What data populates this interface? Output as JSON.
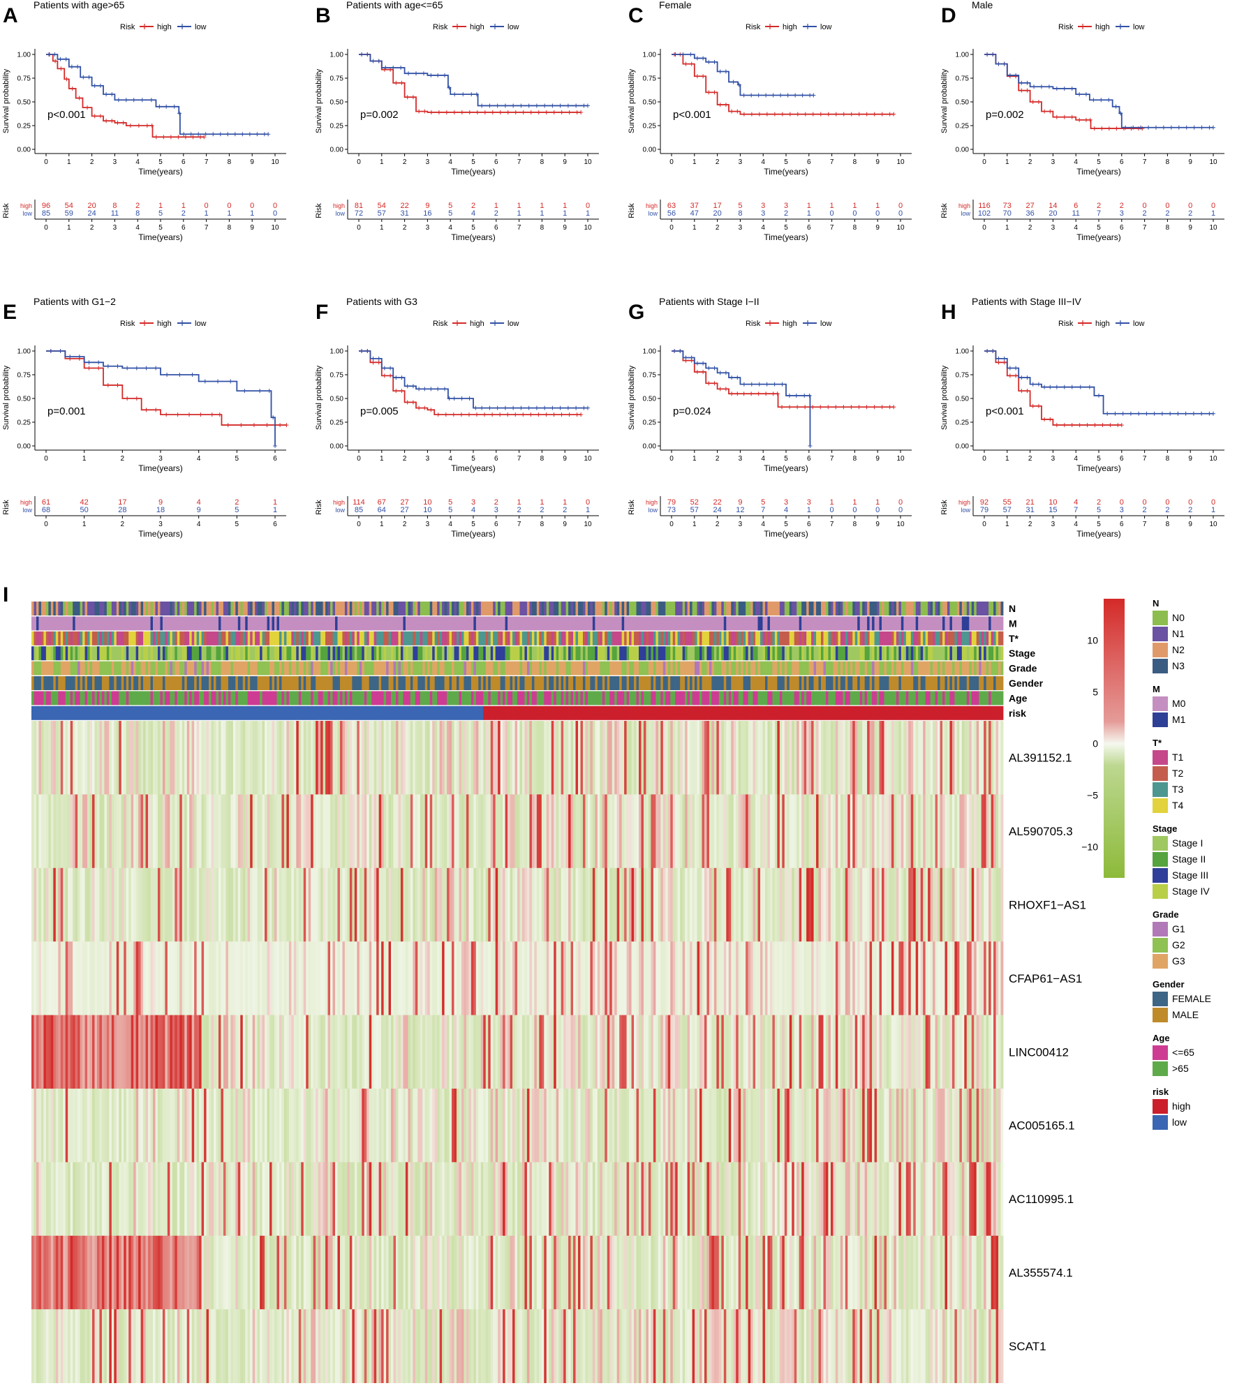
{
  "colors": {
    "high": "#d42a28",
    "low": "#3150a6"
  },
  "km_common": {
    "legend_title": "Risk",
    "legend_high": "high",
    "legend_low": "low",
    "ylabel": "Survival probability",
    "xlabel": "Time(years)",
    "risk_table_ylabel": "Risk",
    "risk_row_high": "high",
    "risk_row_low": "low",
    "yticks": [
      "0.00",
      "0.25",
      "0.50",
      "0.75",
      "1.00"
    ]
  },
  "chart_data": [
    {
      "type": "line",
      "letter": "A",
      "title": "Patients with age>65",
      "pvalue": "p<0.001",
      "xmax": 10,
      "xticks": [
        0,
        1,
        2,
        3,
        4,
        5,
        6,
        7,
        8,
        9,
        10
      ],
      "ylim": [
        0,
        1
      ],
      "series": [
        {
          "name": "high",
          "x": [
            0,
            0.3,
            0.5,
            0.8,
            1.0,
            1.3,
            1.6,
            2.0,
            2.5,
            3.0,
            3.5,
            4.6,
            4.65,
            6.9
          ],
          "y": [
            1,
            0.93,
            0.85,
            0.74,
            0.64,
            0.54,
            0.44,
            0.35,
            0.3,
            0.28,
            0.25,
            0.25,
            0.13,
            0.13
          ]
        },
        {
          "name": "low",
          "x": [
            0,
            0.5,
            1.0,
            1.5,
            2.0,
            2.5,
            3.0,
            4.0,
            4.8,
            5.4,
            5.8,
            5.85,
            9.7
          ],
          "y": [
            1,
            0.95,
            0.87,
            0.76,
            0.67,
            0.58,
            0.52,
            0.52,
            0.45,
            0.45,
            0.38,
            0.16,
            0.16
          ]
        }
      ],
      "risk_table": {
        "x": [
          0,
          1,
          2,
          3,
          4,
          5,
          6,
          7,
          8,
          9,
          10
        ],
        "high": [
          "96",
          "54",
          "20",
          "8",
          "2",
          "1",
          "1",
          "0",
          "0",
          "0",
          "0"
        ],
        "low": [
          "85",
          "59",
          "24",
          "11",
          "8",
          "5",
          "2",
          "1",
          "1",
          "1",
          "0"
        ]
      }
    },
    {
      "type": "line",
      "letter": "B",
      "title": "Patients with age<=65",
      "pvalue": "p=0.002",
      "xmax": 10,
      "xticks": [
        0,
        1,
        2,
        3,
        4,
        5,
        6,
        7,
        8,
        9,
        10
      ],
      "ylim": [
        0,
        1
      ],
      "series": [
        {
          "name": "high",
          "x": [
            0,
            0.5,
            1.0,
            1.5,
            2.0,
            2.5,
            3.0,
            9.7
          ],
          "y": [
            1,
            0.93,
            0.84,
            0.7,
            0.55,
            0.4,
            0.39,
            0.39
          ]
        },
        {
          "name": "low",
          "x": [
            0,
            0.5,
            1.0,
            2.0,
            3.0,
            3.9,
            4.0,
            5.1,
            5.2,
            10
          ],
          "y": [
            1,
            0.93,
            0.86,
            0.8,
            0.78,
            0.65,
            0.58,
            0.58,
            0.46,
            0.46
          ]
        }
      ],
      "risk_table": {
        "x": [
          0,
          1,
          2,
          3,
          4,
          5,
          6,
          7,
          8,
          9,
          10
        ],
        "high": [
          "81",
          "54",
          "22",
          "9",
          "5",
          "2",
          "1",
          "1",
          "1",
          "1",
          "0"
        ],
        "low": [
          "72",
          "57",
          "31",
          "16",
          "5",
          "4",
          "2",
          "1",
          "1",
          "1",
          "1"
        ]
      }
    },
    {
      "type": "line",
      "letter": "C",
      "title": "Female",
      "pvalue": "p<0.001",
      "xmax": 10,
      "xticks": [
        0,
        1,
        2,
        3,
        4,
        5,
        6,
        7,
        8,
        9,
        10
      ],
      "ylim": [
        0,
        1
      ],
      "series": [
        {
          "name": "high",
          "x": [
            0,
            0.5,
            1.0,
            1.5,
            2.0,
            2.5,
            3.0,
            9.7
          ],
          "y": [
            1,
            0.9,
            0.77,
            0.6,
            0.47,
            0.4,
            0.37,
            0.37
          ]
        },
        {
          "name": "low",
          "x": [
            0,
            1.0,
            1.5,
            2.0,
            2.5,
            2.9,
            3.0,
            6.2
          ],
          "y": [
            1,
            0.96,
            0.92,
            0.82,
            0.71,
            0.68,
            0.57,
            0.57
          ]
        }
      ],
      "risk_table": {
        "x": [
          0,
          1,
          2,
          3,
          4,
          5,
          6,
          7,
          8,
          9,
          10
        ],
        "high": [
          "63",
          "37",
          "17",
          "5",
          "3",
          "3",
          "1",
          "1",
          "1",
          "1",
          "0"
        ],
        "low": [
          "56",
          "47",
          "20",
          "8",
          "3",
          "2",
          "1",
          "0",
          "0",
          "0",
          "0"
        ]
      }
    },
    {
      "type": "line",
      "letter": "D",
      "title": "Male",
      "pvalue": "p=0.002",
      "xmax": 10,
      "xticks": [
        0,
        1,
        2,
        3,
        4,
        5,
        6,
        7,
        8,
        9,
        10
      ],
      "ylim": [
        0,
        1
      ],
      "series": [
        {
          "name": "high",
          "x": [
            0,
            0.5,
            1.0,
            1.5,
            2.0,
            2.5,
            3.0,
            4.0,
            4.6,
            4.65,
            6.9
          ],
          "y": [
            1,
            0.9,
            0.77,
            0.62,
            0.5,
            0.4,
            0.34,
            0.31,
            0.31,
            0.22,
            0.22
          ]
        },
        {
          "name": "low",
          "x": [
            0,
            0.5,
            1.0,
            1.5,
            2.0,
            3.0,
            4.0,
            4.6,
            5.6,
            5.9,
            6.0,
            10
          ],
          "y": [
            1,
            0.9,
            0.78,
            0.7,
            0.66,
            0.64,
            0.58,
            0.52,
            0.45,
            0.38,
            0.23,
            0.23
          ]
        }
      ],
      "risk_table": {
        "x": [
          0,
          1,
          2,
          3,
          4,
          5,
          6,
          7,
          8,
          9,
          10
        ],
        "high": [
          "116",
          "73",
          "27",
          "14",
          "6",
          "2",
          "2",
          "0",
          "0",
          "0",
          "0"
        ],
        "low": [
          "102",
          "70",
          "36",
          "20",
          "11",
          "7",
          "3",
          "2",
          "2",
          "2",
          "1"
        ]
      }
    },
    {
      "type": "line",
      "letter": "E",
      "title": "Patients with G1−2",
      "pvalue": "p=0.001",
      "xmax": 6,
      "xticks": [
        0,
        1,
        2,
        3,
        4,
        5,
        6
      ],
      "ylim": [
        0,
        1
      ],
      "series": [
        {
          "name": "high",
          "x": [
            0,
            0.5,
            1.0,
            1.5,
            2.0,
            2.5,
            3.0,
            4.5,
            4.6,
            6.3
          ],
          "y": [
            1,
            0.92,
            0.82,
            0.64,
            0.5,
            0.38,
            0.33,
            0.33,
            0.22,
            0.22
          ]
        },
        {
          "name": "low",
          "x": [
            0,
            0.5,
            1.0,
            1.5,
            2.0,
            2.5,
            3.0,
            4.0,
            5.0,
            5.8,
            5.9,
            6.0
          ],
          "y": [
            1,
            0.94,
            0.88,
            0.84,
            0.82,
            0.82,
            0.75,
            0.68,
            0.58,
            0.58,
            0.3,
            0.0
          ]
        }
      ],
      "risk_table": {
        "x": [
          0,
          1,
          2,
          3,
          4,
          5,
          6
        ],
        "high": [
          "61",
          "42",
          "17",
          "9",
          "4",
          "2",
          "1"
        ],
        "low": [
          "68",
          "50",
          "28",
          "18",
          "9",
          "5",
          "1"
        ]
      }
    },
    {
      "type": "line",
      "letter": "F",
      "title": "Patients with G3",
      "pvalue": "p=0.005",
      "xmax": 10,
      "xticks": [
        0,
        1,
        2,
        3,
        4,
        5,
        6,
        7,
        8,
        9,
        10
      ],
      "ylim": [
        0,
        1
      ],
      "series": [
        {
          "name": "high",
          "x": [
            0,
            0.5,
            1.0,
            1.5,
            2.0,
            2.5,
            3.0,
            3.3,
            9.7
          ],
          "y": [
            1,
            0.88,
            0.74,
            0.58,
            0.46,
            0.4,
            0.38,
            0.33,
            0.33
          ]
        },
        {
          "name": "low",
          "x": [
            0,
            0.5,
            1.0,
            1.5,
            2.0,
            2.5,
            3.0,
            3.9,
            4.0,
            5.0,
            5.2,
            10
          ],
          "y": [
            1,
            0.92,
            0.82,
            0.72,
            0.63,
            0.6,
            0.6,
            0.5,
            0.5,
            0.4,
            0.4,
            0.4
          ]
        }
      ],
      "risk_table": {
        "x": [
          0,
          1,
          2,
          3,
          4,
          5,
          6,
          7,
          8,
          9,
          10
        ],
        "high": [
          "114",
          "67",
          "27",
          "10",
          "5",
          "3",
          "2",
          "1",
          "1",
          "1",
          "0"
        ],
        "low": [
          "85",
          "64",
          "27",
          "10",
          "5",
          "4",
          "3",
          "2",
          "2",
          "2",
          "1"
        ]
      }
    },
    {
      "type": "line",
      "letter": "G",
      "title": "Patients with Stage I−II",
      "pvalue": "p=0.024",
      "xmax": 10,
      "xticks": [
        0,
        1,
        2,
        3,
        4,
        5,
        6,
        7,
        8,
        9,
        10
      ],
      "ylim": [
        0,
        1
      ],
      "series": [
        {
          "name": "high",
          "x": [
            0,
            0.5,
            1.0,
            1.5,
            2.0,
            2.5,
            3.0,
            4.6,
            4.65,
            9.7
          ],
          "y": [
            1,
            0.9,
            0.78,
            0.66,
            0.6,
            0.55,
            0.55,
            0.55,
            0.41,
            0.41
          ]
        },
        {
          "name": "low",
          "x": [
            0,
            0.5,
            1.0,
            1.5,
            2.0,
            2.5,
            3.0,
            4.0,
            5.0,
            5.6,
            6.0,
            6.05
          ],
          "y": [
            1,
            0.93,
            0.87,
            0.82,
            0.77,
            0.72,
            0.65,
            0.65,
            0.53,
            0.53,
            0.53,
            0.0
          ]
        }
      ],
      "risk_table": {
        "x": [
          0,
          1,
          2,
          3,
          4,
          5,
          6,
          7,
          8,
          9,
          10
        ],
        "high": [
          "79",
          "52",
          "22",
          "9",
          "5",
          "3",
          "3",
          "1",
          "1",
          "1",
          "0"
        ],
        "low": [
          "73",
          "57",
          "24",
          "12",
          "7",
          "4",
          "1",
          "0",
          "0",
          "0",
          "0"
        ]
      }
    },
    {
      "type": "line",
      "letter": "H",
      "title": "Patients with Stage III−IV",
      "pvalue": "p<0.001",
      "xmax": 10,
      "xticks": [
        0,
        1,
        2,
        3,
        4,
        5,
        6,
        7,
        8,
        9,
        10
      ],
      "ylim": [
        0,
        1
      ],
      "series": [
        {
          "name": "high",
          "x": [
            0,
            0.5,
            1.0,
            1.5,
            2.0,
            2.5,
            3.0,
            6.0
          ],
          "y": [
            1,
            0.88,
            0.74,
            0.58,
            0.42,
            0.28,
            0.22,
            0.22
          ]
        },
        {
          "name": "low",
          "x": [
            0,
            0.5,
            1.0,
            1.5,
            2.0,
            2.5,
            3.0,
            4.0,
            4.8,
            5.2,
            10
          ],
          "y": [
            1,
            0.92,
            0.82,
            0.72,
            0.65,
            0.62,
            0.62,
            0.62,
            0.53,
            0.34,
            0.34
          ]
        }
      ],
      "risk_table": {
        "x": [
          0,
          1,
          2,
          3,
          4,
          5,
          6,
          7,
          8,
          9,
          10
        ],
        "high": [
          "92",
          "55",
          "21",
          "10",
          "4",
          "2",
          "0",
          "0",
          "0",
          "0",
          "0"
        ],
        "low": [
          "79",
          "57",
          "31",
          "15",
          "7",
          "5",
          "3",
          "2",
          "2",
          "2",
          "1"
        ]
      }
    },
    {
      "type": "heatmap",
      "letter": "I",
      "annotation_rows": [
        "N",
        "M",
        "T*",
        "Stage",
        "Grade",
        "Gender",
        "Age",
        "risk"
      ],
      "genes": [
        "AL391152.1",
        "AL590705.3",
        "RHOXF1−AS1",
        "CFAP61−AS1",
        "LINC00412",
        "AC005165.1",
        "AC110995.1",
        "AL355574.1",
        "SCAT1"
      ],
      "colorbar": {
        "ticks": [
          "10",
          "5",
          "0",
          "−5",
          "−10"
        ],
        "values": [
          10,
          5,
          0,
          -5,
          -10
        ],
        "range": [
          -13,
          14
        ],
        "colors": [
          "#8dba3a",
          "#f5f8ef",
          "#d42a28"
        ]
      },
      "risk_split": {
        "low_fraction": 0.466
      },
      "legend": [
        {
          "title": "N",
          "items": [
            {
              "label": "N0",
              "color": "#8dbd4e"
            },
            {
              "label": "N1",
              "color": "#6b52a3"
            },
            {
              "label": "N2",
              "color": "#e09a6a"
            },
            {
              "label": "N3",
              "color": "#3b5c82"
            }
          ]
        },
        {
          "title": "M",
          "items": [
            {
              "label": "M0",
              "color": "#c48fc0"
            },
            {
              "label": "M1",
              "color": "#2e3f96"
            }
          ]
        },
        {
          "title": "T*",
          "items": [
            {
              "label": "T1",
              "color": "#c4488a"
            },
            {
              "label": "T2",
              "color": "#c45d4d"
            },
            {
              "label": "T3",
              "color": "#4e9690"
            },
            {
              "label": "T4",
              "color": "#e2d23c"
            }
          ]
        },
        {
          "title": "Stage",
          "items": [
            {
              "label": "Stage I",
              "color": "#a0c860"
            },
            {
              "label": "Stage II",
              "color": "#55a43e"
            },
            {
              "label": "Stage III",
              "color": "#2f3f9a"
            },
            {
              "label": "Stage IV",
              "color": "#b9cf48"
            }
          ]
        },
        {
          "title": "Grade",
          "items": [
            {
              "label": "G1",
              "color": "#b179b8"
            },
            {
              "label": "G2",
              "color": "#8fc153"
            },
            {
              "label": "G3",
              "color": "#e0a565"
            }
          ]
        },
        {
          "title": "Gender",
          "items": [
            {
              "label": "FEMALE",
              "color": "#3d6586"
            },
            {
              "label": "MALE",
              "color": "#bf8a2a"
            }
          ]
        },
        {
          "title": "Age",
          "items": [
            {
              "label": "<=65",
              "color": "#cd3c92"
            },
            {
              "label": ">65",
              "color": "#5eaa4a"
            }
          ]
        },
        {
          "title": "risk",
          "items": [
            {
              "label": "high",
              "color": "#cc1f2c"
            },
            {
              "label": "low",
              "color": "#3a66b3"
            }
          ]
        }
      ]
    }
  ]
}
